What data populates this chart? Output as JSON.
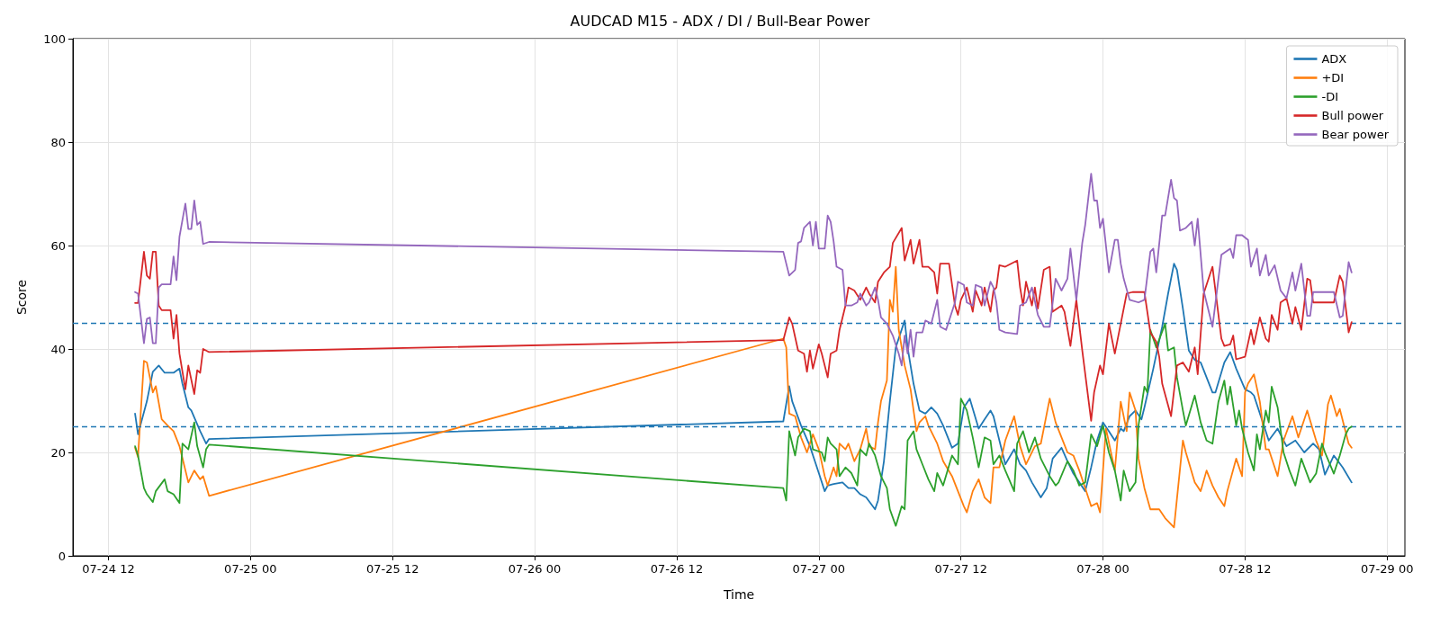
{
  "chart_data": {
    "type": "line",
    "title": "AUDCAD M15 - ADX / DI / Bull-Bear Power",
    "xlabel": "Time",
    "ylabel": "Score",
    "xlim": [
      "--07-24T09:00",
      "--07-29T01:30"
    ],
    "xticks": [
      {
        "value": "--07-24T12:00",
        "label": "07-24 12"
      },
      {
        "value": "--07-25T00:00",
        "label": "07-25 00"
      },
      {
        "value": "--07-25T12:00",
        "label": "07-25 12"
      },
      {
        "value": "--07-26T00:00",
        "label": "07-26 00"
      },
      {
        "value": "--07-26T12:00",
        "label": "07-26 12"
      },
      {
        "value": "--07-27T00:00",
        "label": "07-27 00"
      },
      {
        "value": "--07-27T12:00",
        "label": "07-27 12"
      },
      {
        "value": "--07-28T00:00",
        "label": "07-28 00"
      },
      {
        "value": "--07-28T12:00",
        "label": "07-28 12"
      },
      {
        "value": "--07-29T00:00",
        "label": "07-29 00"
      }
    ],
    "ylim": [
      0,
      100
    ],
    "yticks": [
      0,
      20,
      40,
      60,
      80,
      100
    ],
    "grid": true,
    "legend": "top right",
    "marker": "none",
    "line_style": "solid",
    "ref_lines": [
      {
        "axis": "y",
        "value": 45,
        "color": "#1f77b4",
        "line_style": "dashed"
      },
      {
        "axis": "y",
        "value": 25,
        "color": "#1f77b4",
        "line_style": "dashed"
      }
    ],
    "series": [
      {
        "name": "ADX",
        "color": "#1f77b4",
        "x": [
          "--07-24T14:15",
          "--07-24T14:30",
          "--07-24T15:15",
          "--07-24T15:45",
          "--07-24T16:15",
          "--07-24T16:45",
          "--07-24T17:30",
          "--07-24T18:00",
          "--07-24T18:15",
          "--07-24T18:45",
          "--07-24T19:00",
          "--07-24T19:45",
          "--07-24T20:15",
          "--07-24T20:30",
          "--07-26T21:00",
          "--07-26T21:30",
          "--07-26T21:45",
          "--07-26T22:30",
          "--07-26T23:15",
          "--07-27T00:00",
          "--07-27T00:30",
          "--07-27T00:45",
          "--07-27T01:15",
          "--07-27T02:00",
          "--07-27T02:30",
          "--07-27T03:00",
          "--07-27T03:30",
          "--07-27T04:00",
          "--07-27T04:45",
          "--07-27T05:00",
          "--07-27T05:30",
          "--07-27T06:00",
          "--07-27T06:30",
          "--07-27T07:15",
          "--07-27T07:30",
          "--07-27T08:00",
          "--07-27T08:30",
          "--07-27T09:00",
          "--07-27T09:30",
          "--07-27T10:00",
          "--07-27T10:30",
          "--07-27T11:15",
          "--07-27T11:45",
          "--07-27T12:15",
          "--07-27T12:45",
          "--07-27T13:30",
          "--07-27T14:00",
          "--07-27T14:30",
          "--07-27T14:45",
          "--07-27T15:15",
          "--07-27T15:45",
          "--07-27T16:30",
          "--07-27T17:00",
          "--07-27T17:30",
          "--07-27T18:00",
          "--07-27T18:45",
          "--07-27T19:15",
          "--07-27T19:45",
          "--07-27T20:30",
          "--07-27T21:00",
          "--07-27T21:30",
          "--07-27T22:00",
          "--07-27T22:30",
          "--07-27T23:00",
          "--07-27T23:30",
          "--07-28T00:00",
          "--07-28T00:30",
          "--07-28T01:00",
          "--07-28T01:30",
          "--07-28T01:45",
          "--07-28T02:15",
          "--07-28T02:45",
          "--07-28T03:15",
          "--07-28T03:30",
          "--07-28T04:15",
          "--07-28T05:00",
          "--07-28T05:30",
          "--07-28T06:00",
          "--07-28T06:15",
          "--07-28T06:45",
          "--07-28T07:15",
          "--07-28T07:45",
          "--07-28T08:15",
          "--07-28T08:45",
          "--07-28T09:15",
          "--07-28T09:30",
          "--07-28T10:15",
          "--07-28T10:45",
          "--07-28T11:15",
          "--07-28T12:00",
          "--07-28T12:30",
          "--07-28T12:45",
          "--07-28T13:30",
          "--07-28T14:00",
          "--07-28T14:45",
          "--07-28T15:30",
          "--07-28T16:15",
          "--07-28T17:00",
          "--07-28T17:45",
          "--07-28T18:15",
          "--07-28T18:45",
          "--07-28T19:30",
          "--07-28T20:15",
          "--07-28T21:00"
        ],
        "values": [
          27.5,
          23.5,
          29.9,
          35.6,
          36.8,
          35.4,
          35.4,
          36.2,
          33.3,
          28.7,
          28.1,
          24.1,
          21.7,
          22.6,
          26.0,
          32.8,
          29.9,
          25.2,
          21.2,
          16.0,
          12.5,
          13.6,
          13.9,
          14.2,
          13.1,
          13.1,
          11.9,
          11.3,
          9.0,
          10.7,
          18.3,
          29.9,
          40.3,
          45.5,
          40.3,
          33.3,
          28.1,
          27.5,
          28.7,
          27.5,
          25.2,
          20.9,
          21.7,
          28.7,
          30.4,
          24.6,
          26.4,
          28.1,
          27.0,
          22.3,
          17.7,
          20.6,
          17.7,
          16.5,
          14.2,
          11.3,
          13.1,
          18.8,
          20.9,
          18.3,
          15.9,
          14.2,
          12.5,
          17.1,
          22.3,
          25.8,
          24.1,
          22.3,
          24.6,
          24.1,
          27.0,
          28.1,
          26.4,
          28.7,
          36.2,
          44.3,
          50.7,
          56.5,
          55.3,
          47.8,
          39.7,
          37.9,
          37.4,
          34.5,
          31.6,
          31.6,
          37.4,
          39.4,
          36.2,
          32.2,
          31.6,
          31.0,
          25.8,
          22.3,
          24.6,
          21.2,
          22.3,
          20.0,
          21.7,
          20.6,
          15.7,
          19.4,
          17.1,
          14.2
        ]
      },
      {
        "name": "+DI",
        "color": "#ff7f0e",
        "x": [
          "--07-24T14:15",
          "--07-24T14:30",
          "--07-24T15:00",
          "--07-24T15:15",
          "--07-24T15:45",
          "--07-24T16:00",
          "--07-24T16:30",
          "--07-24T17:00",
          "--07-24T17:30",
          "--07-24T18:00",
          "--07-24T18:15",
          "--07-24T18:45",
          "--07-24T19:15",
          "--07-24T19:45",
          "--07-24T20:00",
          "--07-24T20:30",
          "--07-26T21:00",
          "--07-26T21:15",
          "--07-26T21:30",
          "--07-26T22:00",
          "--07-26T22:30",
          "--07-26T23:00",
          "--07-26T23:30",
          "--07-27T00:00",
          "--07-27T00:30",
          "--07-27T00:45",
          "--07-27T01:15",
          "--07-27T01:30",
          "--07-27T01:45",
          "--07-27T02:15",
          "--07-27T02:30",
          "--07-27T03:00",
          "--07-27T03:30",
          "--07-27T04:00",
          "--07-27T04:15",
          "--07-27T04:45",
          "--07-27T05:00",
          "--07-27T05:15",
          "--07-27T05:45",
          "--07-27T06:00",
          "--07-27T06:15",
          "--07-27T06:30",
          "--07-27T06:45",
          "--07-27T07:15",
          "--07-27T07:45",
          "--07-27T08:15",
          "--07-27T08:30",
          "--07-27T09:00",
          "--07-27T09:15",
          "--07-27T10:00",
          "--07-27T10:30",
          "--07-27T11:15",
          "--07-27T11:45",
          "--07-27T12:15",
          "--07-27T12:30",
          "--07-27T13:00",
          "--07-27T13:30",
          "--07-27T14:00",
          "--07-27T14:30",
          "--07-27T14:45",
          "--07-27T15:15",
          "--07-27T15:45",
          "--07-27T16:30",
          "--07-27T17:00",
          "--07-27T17:30",
          "--07-27T18:15",
          "--07-27T18:45",
          "--07-27T19:00",
          "--07-27T19:30",
          "--07-27T20:00",
          "--07-27T20:30",
          "--07-27T21:00",
          "--07-27T21:30",
          "--07-27T22:00",
          "--07-27T22:30",
          "--07-27T23:00",
          "--07-27T23:30",
          "--07-27T23:45",
          "--07-28T00:15",
          "--07-28T01:00",
          "--07-28T01:30",
          "--07-28T02:00",
          "--07-28T02:15",
          "--07-28T02:45",
          "--07-28T03:00",
          "--07-28T03:30",
          "--07-28T04:00",
          "--07-28T04:45",
          "--07-28T05:15",
          "--07-28T06:00",
          "--07-28T06:45",
          "--07-28T07:00",
          "--07-28T07:45",
          "--07-28T08:15",
          "--07-28T08:45",
          "--07-28T09:15",
          "--07-28T09:45",
          "--07-28T10:15",
          "--07-28T10:30",
          "--07-28T11:15",
          "--07-28T11:45",
          "--07-28T12:00",
          "--07-28T12:15",
          "--07-28T12:45",
          "--07-28T13:15",
          "--07-28T13:45",
          "--07-28T14:00",
          "--07-28T14:45",
          "--07-28T15:15",
          "--07-28T16:00",
          "--07-28T16:30",
          "--07-28T17:15",
          "--07-28T18:00",
          "--07-28T18:30",
          "--07-28T19:00",
          "--07-28T19:15",
          "--07-28T19:45",
          "--07-28T20:00",
          "--07-28T20:45",
          "--07-28T21:00"
        ],
        "values": [
          20.9,
          19.1,
          37.7,
          37.4,
          31.6,
          32.8,
          26.4,
          25.2,
          24.1,
          21.2,
          18.9,
          14.2,
          16.5,
          14.8,
          15.4,
          11.6,
          42.0,
          40.3,
          27.5,
          27.0,
          22.9,
          20.0,
          23.5,
          20.6,
          15.4,
          13.6,
          17.1,
          15.4,
          21.7,
          20.6,
          21.7,
          18.3,
          20.6,
          24.6,
          21.2,
          20.6,
          25.8,
          29.9,
          33.9,
          49.5,
          47.2,
          55.9,
          43.7,
          36.8,
          32.2,
          24.1,
          25.8,
          27.0,
          25.2,
          21.7,
          18.3,
          15.4,
          12.5,
          9.6,
          8.4,
          12.5,
          14.8,
          11.3,
          10.2,
          17.1,
          17.1,
          22.3,
          27.0,
          21.2,
          17.7,
          21.2,
          21.7,
          24.6,
          30.4,
          25.8,
          22.9,
          20.0,
          19.4,
          16.5,
          13.1,
          9.6,
          10.2,
          8.4,
          24.6,
          16.5,
          29.8,
          24.1,
          31.6,
          28.1,
          18.8,
          13.1,
          9.0,
          9.0,
          7.3,
          5.5,
          22.3,
          20.0,
          14.2,
          12.5,
          16.5,
          13.6,
          11.3,
          9.6,
          12.5,
          18.8,
          15.4,
          31.6,
          33.3,
          35.1,
          29.8,
          20.6,
          20.6,
          15.4,
          22.3,
          27.0,
          22.9,
          28.1,
          22.3,
          19.4,
          29.3,
          31.0,
          27.0,
          28.4,
          21.7,
          20.9
        ]
      },
      {
        "name": "-DI",
        "color": "#2ca02c",
        "x": [
          "--07-24T14:15",
          "--07-24T14:30",
          "--07-24T15:00",
          "--07-24T15:15",
          "--07-24T15:45",
          "--07-24T16:00",
          "--07-24T16:45",
          "--07-24T17:00",
          "--07-24T17:30",
          "--07-24T18:00",
          "--07-24T18:15",
          "--07-24T18:45",
          "--07-24T19:15",
          "--07-24T19:30",
          "--07-24T20:00",
          "--07-24T20:15",
          "--07-24T20:30",
          "--07-26T21:00",
          "--07-26T21:15",
          "--07-26T21:30",
          "--07-26T22:00",
          "--07-26T22:15",
          "--07-26T22:45",
          "--07-26T23:15",
          "--07-26T23:30",
          "--07-27T00:15",
          "--07-27T00:30",
          "--07-27T00:45",
          "--07-27T01:00",
          "--07-27T01:30",
          "--07-27T01:45",
          "--07-27T02:15",
          "--07-27T02:45",
          "--07-27T03:15",
          "--07-27T03:30",
          "--07-27T04:00",
          "--07-27T04:15",
          "--07-27T04:45",
          "--07-27T05:15",
          "--07-27T05:45",
          "--07-27T06:00",
          "--07-27T06:30",
          "--07-27T07:00",
          "--07-27T07:15",
          "--07-27T07:30",
          "--07-27T08:00",
          "--07-27T08:15",
          "--07-27T08:45",
          "--07-27T09:15",
          "--07-27T09:45",
          "--07-27T10:00",
          "--07-27T10:30",
          "--07-27T11:15",
          "--07-27T11:45",
          "--07-27T12:00",
          "--07-27T12:30",
          "--07-27T13:00",
          "--07-27T13:30",
          "--07-27T14:00",
          "--07-27T14:30",
          "--07-27T14:45",
          "--07-27T15:15",
          "--07-27T15:45",
          "--07-27T16:30",
          "--07-27T16:45",
          "--07-27T17:15",
          "--07-27T17:45",
          "--07-27T18:15",
          "--07-27T18:45",
          "--07-27T19:30",
          "--07-27T20:00",
          "--07-27T20:15",
          "--07-27T21:00",
          "--07-27T21:30",
          "--07-27T22:00",
          "--07-27T22:30",
          "--07-27T23:00",
          "--07-27T23:30",
          "--07-28T00:00",
          "--07-28T00:30",
          "--07-28T01:00",
          "--07-28T01:30",
          "--07-28T01:45",
          "--07-28T02:15",
          "--07-28T02:45",
          "--07-28T03:00",
          "--07-28T03:30",
          "--07-28T03:45",
          "--07-28T04:00",
          "--07-28T04:30",
          "--07-28T05:15",
          "--07-28T05:30",
          "--07-28T06:00",
          "--07-28T06:15",
          "--07-28T06:45",
          "--07-28T07:00",
          "--07-28T07:45",
          "--07-28T08:15",
          "--07-28T08:45",
          "--07-28T09:15",
          "--07-28T09:45",
          "--07-28T10:15",
          "--07-28T10:30",
          "--07-28T10:45",
          "--07-28T11:15",
          "--07-28T11:30",
          "--07-28T11:45",
          "--07-28T12:15",
          "--07-28T12:45",
          "--07-28T13:00",
          "--07-28T13:15",
          "--07-28T13:45",
          "--07-28T14:00",
          "--07-28T14:15",
          "--07-28T14:45",
          "--07-28T15:15",
          "--07-28T15:45",
          "--07-28T16:15",
          "--07-28T16:45",
          "--07-28T17:30",
          "--07-28T18:00",
          "--07-28T18:30",
          "--07-28T18:45",
          "--07-28T19:30",
          "--07-28T20:00",
          "--07-28T20:30",
          "--07-28T20:45",
          "--07-28T21:00"
        ],
        "values": [
          21.2,
          19.4,
          13.1,
          11.9,
          10.4,
          12.5,
          14.8,
          12.5,
          11.9,
          10.2,
          21.7,
          20.6,
          25.8,
          21.2,
          17.1,
          20.6,
          21.5,
          13.1,
          10.7,
          24.1,
          19.4,
          22.9,
          24.6,
          24.1,
          20.6,
          20.0,
          18.3,
          22.9,
          21.7,
          20.6,
          15.4,
          17.1,
          16.0,
          13.6,
          20.6,
          19.4,
          21.7,
          19.4,
          15.4,
          13.1,
          9.0,
          5.8,
          9.6,
          9.0,
          22.3,
          24.1,
          20.6,
          17.7,
          14.8,
          12.5,
          16.0,
          13.6,
          19.4,
          17.7,
          30.4,
          28.1,
          22.9,
          17.1,
          22.9,
          22.3,
          17.7,
          19.4,
          16.5,
          12.5,
          21.7,
          24.1,
          20.0,
          22.9,
          18.8,
          15.4,
          13.6,
          14.2,
          18.3,
          16.5,
          13.6,
          14.2,
          23.5,
          21.2,
          25.2,
          20.0,
          16.5,
          10.7,
          16.5,
          12.5,
          14.2,
          25.2,
          32.7,
          31.6,
          43.7,
          40.3,
          44.9,
          39.7,
          40.3,
          34.5,
          28.1,
          25.2,
          31.0,
          25.8,
          22.3,
          21.7,
          29.8,
          33.9,
          29.3,
          32.7,
          25.2,
          28.1,
          24.6,
          20.0,
          16.5,
          23.5,
          20.6,
          28.1,
          25.8,
          32.7,
          28.7,
          20.0,
          16.5,
          13.6,
          18.8,
          14.2,
          15.9,
          21.7,
          20.0,
          15.9,
          19.4,
          23.5,
          24.6,
          25.0
        ]
      },
      {
        "name": "Bull power",
        "color": "#d62728",
        "x": [
          "--07-24T14:15",
          "--07-24T14:30",
          "--07-24T15:00",
          "--07-24T15:15",
          "--07-24T15:30",
          "--07-24T15:45",
          "--07-24T16:00",
          "--07-24T16:15",
          "--07-24T16:30",
          "--07-24T17:15",
          "--07-24T17:30",
          "--07-24T17:45",
          "--07-24T18:00",
          "--07-24T18:30",
          "--07-24T18:45",
          "--07-24T19:15",
          "--07-24T19:30",
          "--07-24T19:45",
          "--07-24T20:00",
          "--07-24T20:30",
          "--07-26T21:00",
          "--07-26T21:30",
          "--07-26T21:45",
          "--07-26T22:15",
          "--07-26T22:45",
          "--07-26T23:00",
          "--07-26T23:15",
          "--07-26T23:30",
          "--07-27T00:00",
          "--07-27T00:15",
          "--07-27T00:45",
          "--07-27T01:00",
          "--07-27T01:30",
          "--07-27T01:45",
          "--07-27T02:15",
          "--07-27T02:30",
          "--07-27T03:00",
          "--07-27T03:30",
          "--07-27T04:00",
          "--07-27T04:15",
          "--07-27T04:45",
          "--07-27T05:00",
          "--07-27T05:30",
          "--07-27T06:00",
          "--07-27T06:15",
          "--07-27T07:00",
          "--07-27T07:15",
          "--07-27T07:45",
          "--07-27T08:00",
          "--07-27T08:30",
          "--07-27T08:45",
          "--07-27T09:15",
          "--07-27T09:45",
          "--07-27T10:00",
          "--07-27T10:15",
          "--07-27T11:00",
          "--07-27T11:30",
          "--07-27T11:45",
          "--07-27T12:00",
          "--07-27T12:30",
          "--07-27T13:00",
          "--07-27T13:15",
          "--07-27T13:45",
          "--07-27T14:00",
          "--07-27T14:30",
          "--07-27T14:45",
          "--07-27T15:00",
          "--07-27T15:15",
          "--07-27T15:45",
          "--07-27T16:45",
          "--07-27T17:00",
          "--07-27T17:15",
          "--07-27T17:30",
          "--07-27T18:00",
          "--07-27T18:15",
          "--07-27T18:30",
          "--07-27T19:00",
          "--07-27T19:30",
          "--07-27T19:45",
          "--07-27T20:30",
          "--07-27T20:45",
          "--07-27T21:15",
          "--07-27T21:45",
          "--07-27T22:15",
          "--07-27T23:00",
          "--07-27T23:15",
          "--07-27T23:45",
          "--07-28T00:00",
          "--07-28T00:30",
          "--07-28T01:00",
          "--07-28T01:30",
          "--07-28T02:00",
          "--07-28T02:30",
          "--07-28T03:30",
          "--07-28T04:00",
          "--07-28T04:30",
          "--07-28T04:45",
          "--07-28T05:00",
          "--07-28T05:45",
          "--07-28T06:15",
          "--07-28T06:45",
          "--07-28T07:15",
          "--07-28T07:45",
          "--07-28T08:00",
          "--07-28T08:30",
          "--07-28T09:15",
          "--07-28T10:00",
          "--07-28T10:15",
          "--07-28T10:45",
          "--07-28T11:00",
          "--07-28T11:15",
          "--07-28T12:00",
          "--07-28T12:30",
          "--07-28T12:45",
          "--07-28T13:15",
          "--07-28T13:45",
          "--07-28T14:00",
          "--07-28T14:15",
          "--07-28T14:45",
          "--07-28T15:00",
          "--07-28T15:30",
          "--07-28T16:00",
          "--07-28T16:15",
          "--07-28T16:45",
          "--07-28T17:15",
          "--07-28T17:30",
          "--07-28T17:45",
          "--07-28T19:30",
          "--07-28T20:00",
          "--07-28T20:15",
          "--07-28T20:45",
          "--07-28T21:00"
        ],
        "values": [
          48.9,
          48.9,
          58.8,
          54.2,
          53.6,
          58.8,
          58.8,
          48.4,
          47.5,
          47.5,
          42.0,
          46.6,
          39.1,
          32.2,
          36.8,
          31.3,
          35.9,
          35.4,
          40.0,
          39.4,
          41.7,
          46.1,
          44.9,
          39.7,
          39.1,
          35.6,
          39.7,
          36.2,
          40.9,
          39.1,
          34.5,
          39.1,
          39.7,
          43.7,
          48.4,
          51.9,
          51.3,
          49.5,
          51.9,
          50.7,
          49.0,
          53.0,
          54.8,
          55.9,
          60.5,
          63.4,
          57.1,
          61.1,
          56.5,
          61.1,
          55.9,
          55.9,
          54.8,
          50.7,
          56.5,
          56.5,
          48.4,
          46.6,
          49.5,
          51.9,
          47.2,
          51.3,
          48.4,
          51.9,
          47.2,
          51.3,
          51.9,
          56.2,
          55.9,
          57.1,
          51.9,
          48.4,
          53.0,
          48.4,
          51.9,
          47.8,
          55.3,
          55.9,
          47.2,
          48.4,
          47.2,
          40.6,
          49.5,
          39.7,
          26.1,
          31.6,
          36.8,
          35.1,
          44.9,
          39.1,
          44.9,
          50.7,
          51.0,
          51.0,
          43.2,
          41.4,
          38.5,
          33.3,
          27.0,
          36.8,
          37.4,
          35.6,
          40.3,
          35.1,
          50.7,
          55.9,
          42.0,
          40.6,
          40.9,
          42.6,
          38.0,
          38.5,
          43.7,
          40.9,
          46.1,
          42.0,
          41.4,
          46.6,
          43.7,
          49.0,
          49.8,
          44.9,
          48.1,
          43.7,
          53.6,
          53.3,
          49.0,
          49.0,
          54.2,
          53.0,
          43.2,
          45.2
        ]
      },
      {
        "name": "Bear power",
        "color": "#9467bd",
        "x": [
          "--07-24T14:15",
          "--07-24T14:30",
          "--07-24T15:00",
          "--07-24T15:15",
          "--07-24T15:30",
          "--07-24T15:45",
          "--07-24T16:00",
          "--07-24T16:15",
          "--07-24T16:30",
          "--07-24T17:15",
          "--07-24T17:30",
          "--07-24T17:45",
          "--07-24T18:00",
          "--07-24T18:30",
          "--07-24T18:45",
          "--07-24T19:00",
          "--07-24T19:15",
          "--07-24T19:30",
          "--07-24T19:45",
          "--07-24T20:00",
          "--07-24T20:30",
          "--07-26T21:00",
          "--07-26T21:30",
          "--07-26T22:00",
          "--07-26T22:15",
          "--07-26T22:30",
          "--07-26T22:45",
          "--07-26T23:15",
          "--07-26T23:30",
          "--07-26T23:45",
          "--07-27T00:00",
          "--07-27T00:30",
          "--07-27T00:45",
          "--07-27T01:00",
          "--07-27T01:15",
          "--07-27T01:30",
          "--07-27T02:00",
          "--07-27T02:15",
          "--07-27T02:45",
          "--07-27T03:15",
          "--07-27T03:30",
          "--07-27T04:00",
          "--07-27T04:15",
          "--07-27T04:45",
          "--07-27T05:00",
          "--07-27T05:15",
          "--07-27T05:45",
          "--07-27T06:15",
          "--07-27T06:45",
          "--07-27T07:00",
          "--07-27T07:15",
          "--07-27T07:30",
          "--07-27T07:45",
          "--07-27T08:00",
          "--07-27T08:15",
          "--07-27T08:45",
          "--07-27T09:00",
          "--07-27T09:30",
          "--07-27T10:00",
          "--07-27T10:15",
          "--07-27T10:45",
          "--07-27T11:30",
          "--07-27T11:45",
          "--07-27T12:15",
          "--07-27T12:30",
          "--07-27T13:00",
          "--07-27T13:15",
          "--07-27T13:45",
          "--07-27T14:00",
          "--07-27T14:30",
          "--07-27T14:45",
          "--07-27T15:00",
          "--07-27T15:15",
          "--07-27T15:45",
          "--07-27T16:45",
          "--07-27T17:00",
          "--07-27T17:30",
          "--07-27T18:00",
          "--07-27T18:30",
          "--07-27T19:00",
          "--07-27T19:30",
          "--07-27T20:00",
          "--07-27T20:30",
          "--07-27T21:00",
          "--07-27T21:15",
          "--07-27T21:45",
          "--07-27T22:15",
          "--07-27T22:30",
          "--07-27T23:00",
          "--07-27T23:15",
          "--07-27T23:30",
          "--07-27T23:45",
          "--07-28T00:00",
          "--07-28T00:30",
          "--07-28T01:00",
          "--07-28T01:15",
          "--07-28T01:30",
          "--07-28T01:45",
          "--07-28T02:15",
          "--07-28T03:00",
          "--07-28T03:30",
          "--07-28T04:00",
          "--07-28T04:15",
          "--07-28T04:30",
          "--07-28T05:00",
          "--07-28T05:15",
          "--07-28T05:45",
          "--07-28T06:00",
          "--07-28T06:15",
          "--07-28T06:30",
          "--07-28T07:00",
          "--07-28T07:30",
          "--07-28T07:45",
          "--07-28T08:00",
          "--07-28T08:30",
          "--07-28T09:15",
          "--07-28T10:00",
          "--07-28T10:45",
          "--07-28T11:00",
          "--07-28T11:15",
          "--07-28T11:45",
          "--07-28T12:15",
          "--07-28T12:30",
          "--07-28T13:00",
          "--07-28T13:15",
          "--07-28T13:45",
          "--07-28T14:00",
          "--07-28T14:30",
          "--07-28T15:00",
          "--07-28T15:30",
          "--07-28T16:00",
          "--07-28T16:15",
          "--07-28T16:45",
          "--07-28T17:15",
          "--07-28T17:30",
          "--07-28T17:45",
          "--07-28T19:30",
          "--07-28T20:00",
          "--07-28T20:15",
          "--07-28T20:45",
          "--07-28T21:00"
        ],
        "values": [
          51.0,
          50.7,
          41.1,
          45.8,
          46.1,
          41.1,
          41.1,
          51.9,
          52.5,
          52.5,
          57.9,
          53.3,
          61.7,
          68.1,
          63.2,
          63.2,
          68.7,
          64.0,
          64.6,
          60.3,
          60.7,
          58.8,
          54.2,
          55.3,
          60.5,
          60.8,
          63.4,
          64.6,
          60.0,
          64.6,
          59.4,
          59.4,
          65.8,
          64.6,
          60.8,
          55.9,
          55.3,
          48.4,
          48.4,
          49.0,
          50.7,
          48.4,
          49.0,
          51.9,
          49.5,
          46.1,
          44.9,
          42.6,
          39.1,
          36.8,
          42.6,
          39.1,
          43.7,
          38.5,
          43.2,
          43.2,
          45.5,
          44.9,
          49.5,
          44.3,
          43.7,
          49.0,
          53.0,
          52.4,
          49.0,
          48.4,
          52.4,
          51.9,
          48.4,
          53.0,
          51.9,
          49.0,
          43.7,
          43.2,
          42.9,
          48.4,
          49.0,
          51.9,
          46.6,
          44.3,
          44.3,
          53.6,
          51.3,
          53.6,
          59.4,
          49.5,
          60.5,
          64.0,
          73.9,
          68.7,
          68.7,
          63.4,
          65.2,
          54.8,
          61.1,
          61.1,
          56.5,
          53.6,
          49.5,
          49.0,
          49.5,
          58.8,
          59.4,
          54.8,
          65.8,
          65.8,
          72.7,
          69.2,
          68.7,
          62.9,
          63.4,
          64.6,
          60.0,
          65.2,
          51.3,
          44.3,
          58.2,
          59.4,
          57.6,
          62.0,
          62.0,
          61.1,
          55.9,
          59.4,
          54.2,
          58.2,
          54.2,
          56.2,
          51.3,
          49.8,
          54.8,
          51.3,
          56.5,
          46.4,
          46.4,
          51.0,
          51.0,
          46.1,
          46.4,
          56.8,
          54.8
        ]
      }
    ]
  }
}
